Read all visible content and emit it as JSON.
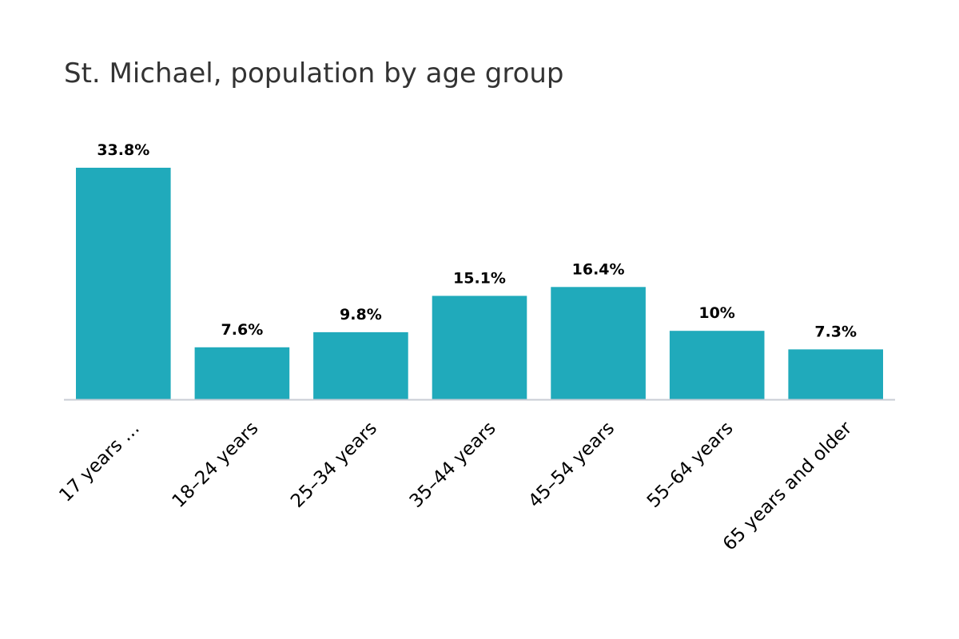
{
  "chart_data": {
    "type": "bar",
    "title": "St. Michael, population by age group",
    "categories": [
      "17 years …",
      "18–24 years",
      "25–34 years",
      "35–44 years",
      "45–54 years",
      "55–64 years",
      "65 years and older"
    ],
    "values": [
      33.8,
      7.6,
      9.8,
      15.1,
      16.4,
      10,
      7.3
    ],
    "value_labels": [
      "33.8%",
      "7.6%",
      "9.8%",
      "15.1%",
      "16.4%",
      "10%",
      "7.3%"
    ],
    "unit": "%",
    "ylim": [
      0,
      33.8
    ],
    "grid": false,
    "legend": "none",
    "bar_color": "#20aabb",
    "axis_color": "#c8ccd4"
  }
}
